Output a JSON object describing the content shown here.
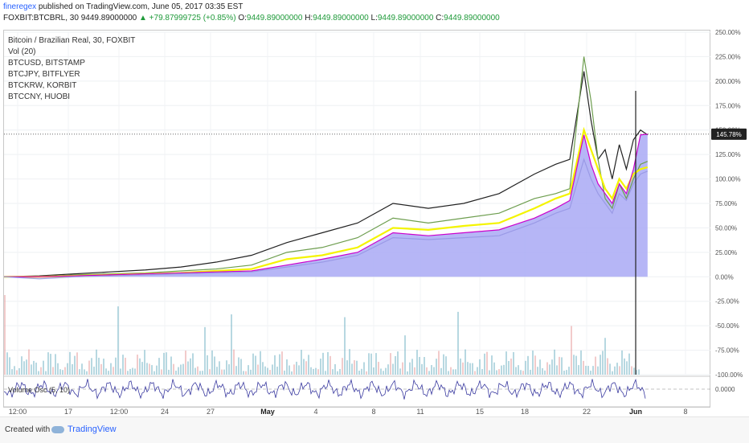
{
  "header": {
    "author": "fineregex",
    "published": " published on TradingView.com, June 05, 2017 03:35 EST",
    "symbol_line": "FOXBIT:BTCBRL, 30  9449.89000000",
    "change": "▲ +79.87999725 (+0.85%)",
    "o_label": "O:",
    "o_val": "9449.89000000",
    "h_label": "H:",
    "h_val": "9449.89000000",
    "l_label": "L:",
    "l_val": "9449.89000000",
    "c_label": "C:",
    "c_val": "9449.89000000"
  },
  "legend": [
    "Bitcoin / Brazilian Real, 30, FOXBIT",
    "Vol (20)",
    "BTCUSD, BITSTAMP",
    "BTCJPY, BITFLYER",
    "BTCKRW, KORBIT",
    "BTCCNY, HUOBI"
  ],
  "oscillator_label": "Volume Osc (5, 10)",
  "footer": {
    "made": "Created with",
    "brand": "TradingView"
  },
  "colors": {
    "area": "#a9a9f5",
    "btcbrl": "#cc00cc",
    "btcusd": "#222222",
    "btcjpy": "#6e9e4f",
    "btckrw": "#f4f400",
    "btccny": "#9a9ae6",
    "volume": "#7bb8c8",
    "osc": "#3a3aa0",
    "badge": "#222222"
  },
  "chart_data": {
    "type": "line",
    "xticks": [
      "12:00",
      "17",
      "12:00",
      "24",
      "27",
      "May",
      "4",
      "8",
      "11",
      "15",
      "18",
      "22",
      "Jun",
      "8"
    ],
    "yticks": [
      "250.00%",
      "225.00%",
      "200.00%",
      "175.00%",
      "150.00%",
      "125.00%",
      "100.00%",
      "75.00%",
      "50.00%",
      "25.00%",
      "0.00%",
      "-25.00%",
      "-50.00%",
      "-75.00%",
      "-100.00%"
    ],
    "ylim": [
      -100,
      250
    ],
    "last_value_badge": "145.78%",
    "osc_axis_label": "0.0000",
    "x_domain": [
      0,
      100
    ],
    "series": [
      {
        "name": "BTCUSD, BITSTAMP",
        "x": [
          0,
          5,
          10,
          15,
          20,
          25,
          30,
          35,
          40,
          45,
          50,
          55,
          60,
          65,
          70,
          75,
          78,
          80,
          82,
          83,
          84,
          85,
          86,
          87,
          88,
          89,
          90,
          91
        ],
        "values": [
          0,
          1,
          3,
          5,
          7,
          10,
          15,
          22,
          35,
          45,
          55,
          75,
          70,
          75,
          85,
          105,
          115,
          120,
          210,
          160,
          120,
          130,
          100,
          135,
          110,
          140,
          150,
          145
        ]
      },
      {
        "name": "BTCJPY, BITFLYER",
        "x": [
          0,
          5,
          10,
          15,
          20,
          25,
          30,
          35,
          40,
          45,
          50,
          55,
          60,
          65,
          70,
          75,
          78,
          80,
          82,
          83,
          84,
          85,
          86,
          87,
          88,
          89,
          90,
          91
        ],
        "values": [
          0,
          0,
          2,
          3,
          4,
          6,
          8,
          12,
          25,
          30,
          40,
          60,
          55,
          60,
          65,
          80,
          85,
          90,
          225,
          180,
          120,
          80,
          70,
          95,
          80,
          100,
          115,
          118
        ]
      },
      {
        "name": "BTCKRW, KORBIT",
        "x": [
          0,
          5,
          10,
          15,
          20,
          25,
          30,
          35,
          40,
          45,
          50,
          55,
          60,
          65,
          70,
          75,
          78,
          80,
          82,
          83,
          84,
          85,
          86,
          87,
          88,
          89,
          90,
          91
        ],
        "values": [
          0,
          0,
          1,
          2,
          3,
          4,
          6,
          8,
          18,
          22,
          30,
          50,
          48,
          52,
          55,
          70,
          80,
          85,
          150,
          130,
          110,
          90,
          80,
          100,
          90,
          105,
          110,
          112
        ]
      },
      {
        "name": "Bitcoin / Brazilian Real, 30, FOXBIT",
        "x": [
          0,
          5,
          10,
          15,
          20,
          25,
          30,
          35,
          40,
          45,
          50,
          55,
          60,
          65,
          70,
          75,
          78,
          80,
          82,
          83,
          84,
          85,
          86,
          87,
          88,
          89,
          90,
          91
        ],
        "values": [
          0,
          0,
          1,
          2,
          3,
          4,
          5,
          6,
          12,
          18,
          25,
          45,
          42,
          45,
          48,
          60,
          70,
          78,
          145,
          115,
          95,
          85,
          75,
          95,
          85,
          110,
          145,
          145.78
        ]
      },
      {
        "name": "BTCCNY, HUOBI",
        "x": [
          0,
          5,
          10,
          15,
          20,
          25,
          30,
          35,
          40,
          45,
          50,
          55,
          60,
          65,
          70,
          75,
          78,
          80,
          82,
          83,
          84,
          85,
          86,
          87,
          88,
          89,
          90,
          91
        ],
        "values": [
          0,
          -2,
          0,
          1,
          2,
          3,
          4,
          5,
          10,
          15,
          22,
          40,
          38,
          40,
          42,
          55,
          65,
          70,
          120,
          100,
          85,
          75,
          65,
          85,
          78,
          95,
          105,
          108
        ]
      }
    ]
  }
}
